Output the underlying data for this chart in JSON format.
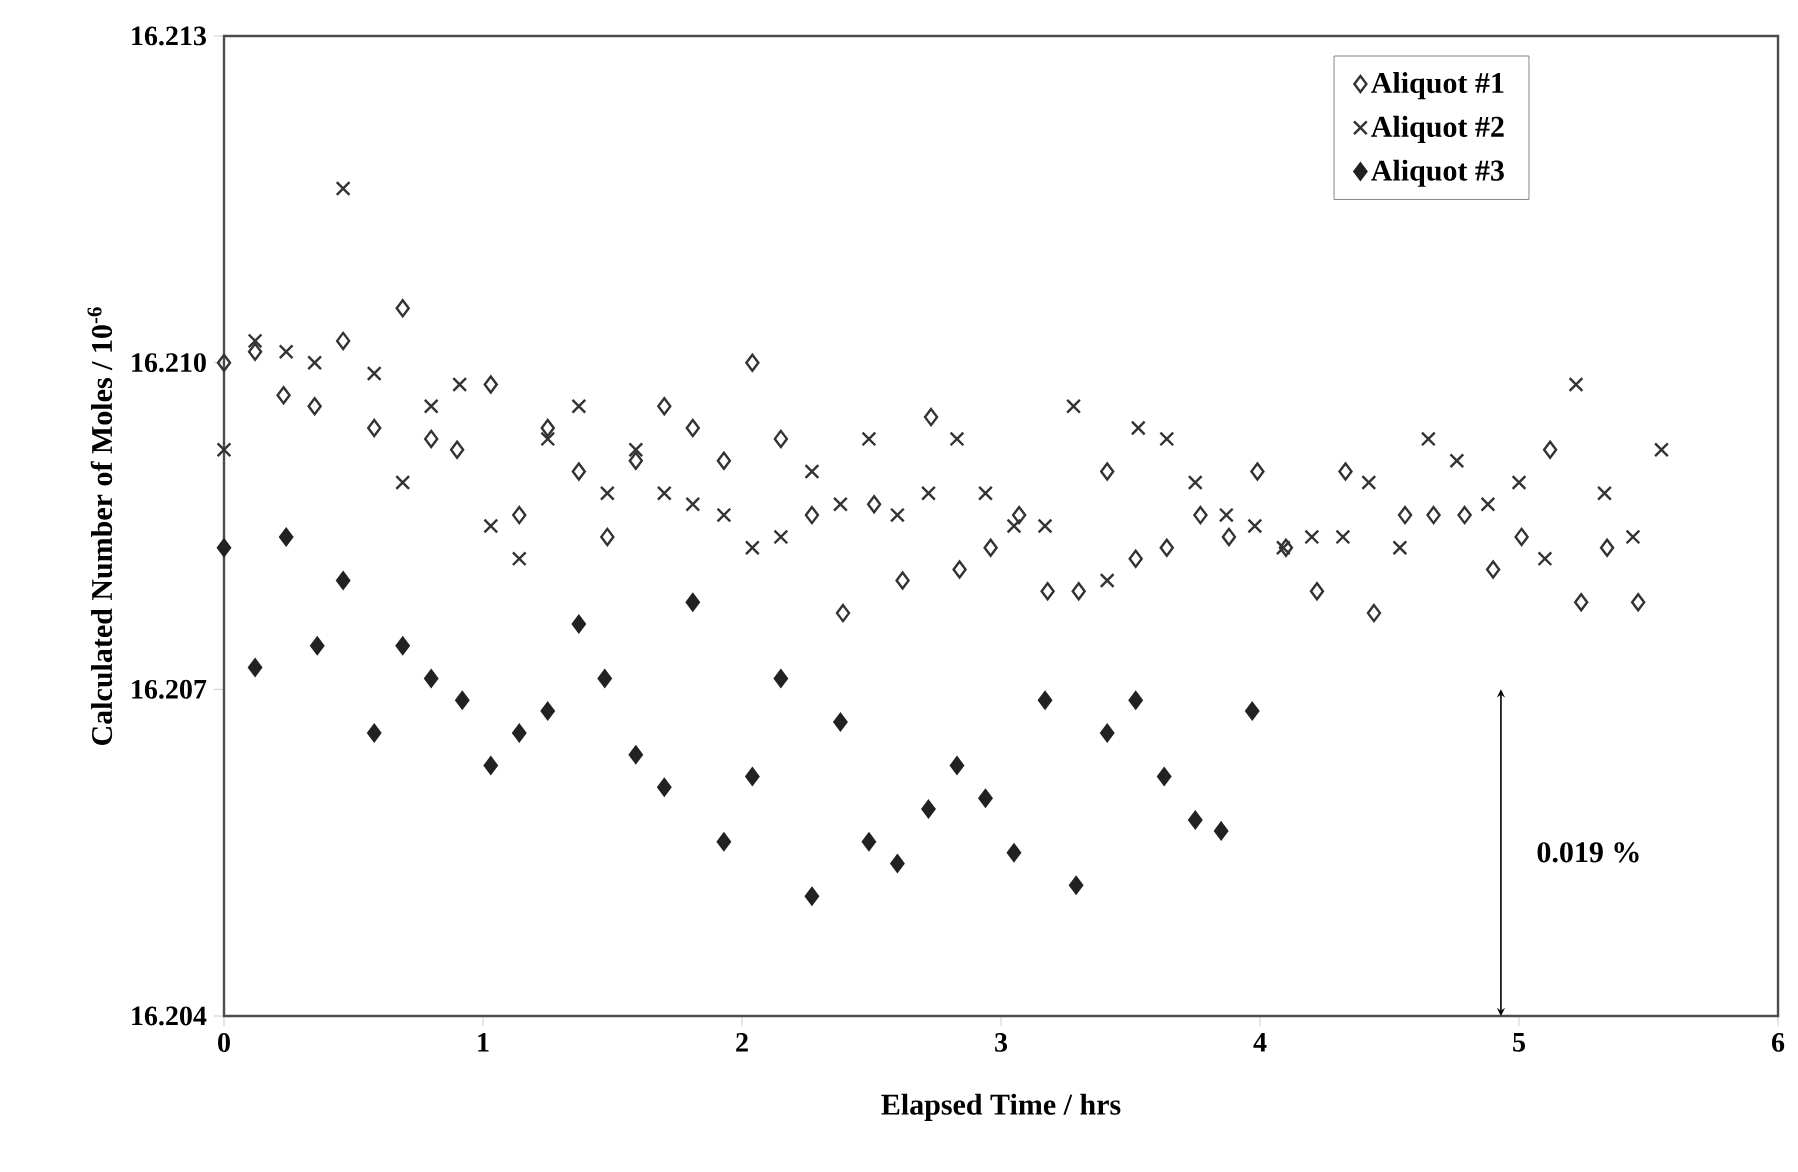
{
  "chart_data": {
    "type": "scatter",
    "xlabel": "Elapsed Time / hrs",
    "ylabel": "Calculated Number of Moles / 10$^{-6}$",
    "xlim": [
      0,
      6
    ],
    "xticks": [
      0,
      1,
      2,
      3,
      4,
      5,
      6
    ],
    "ylim": [
      16.204,
      16.213
    ],
    "yticks": [
      {
        "value": 16.204,
        "label": "16.204"
      },
      {
        "value": 16.207,
        "label": "16.207"
      },
      {
        "value": 16.21,
        "label": "16.210"
      },
      {
        "value": 16.213,
        "label": "16.213"
      }
    ],
    "grid": false,
    "legend": "top right",
    "annotations": [
      "0.019 %"
    ],
    "series": [
      {
        "name": "Aliquot #1",
        "color": "#333333",
        "marker": "diamond",
        "x": [
          0,
          0.12,
          0.23,
          0.35,
          0.46,
          0.58,
          0.69,
          0.8,
          0.9,
          1.03,
          1.14,
          1.25,
          1.37,
          1.48,
          1.59,
          1.7,
          1.81,
          1.93,
          2.04,
          2.15,
          2.27,
          2.39,
          2.51,
          2.62,
          2.73,
          2.84,
          2.96,
          3.07,
          3.18,
          3.3,
          3.41,
          3.52,
          3.64,
          3.77,
          3.88,
          3.99,
          4.1,
          4.22,
          4.33,
          4.44,
          4.56,
          4.67,
          4.79,
          4.9,
          5.01,
          5.12,
          5.24,
          5.34,
          5.46
        ],
        "values": [
          16.21,
          16.2101,
          16.2097,
          16.2096,
          16.2102,
          16.2094,
          16.2105,
          16.2093,
          16.2092,
          16.2098,
          16.2086,
          16.2094,
          16.209,
          16.2084,
          16.2091,
          16.2096,
          16.2094,
          16.2091,
          16.21,
          16.2093,
          16.2086,
          16.2077,
          16.2087,
          16.208,
          16.2095,
          16.2081,
          16.2083,
          16.2086,
          16.2079,
          16.2079,
          16.209,
          16.2082,
          16.2083,
          16.2086,
          16.2084,
          16.209,
          16.2083,
          16.2079,
          16.209,
          16.2077,
          16.2086,
          16.2086,
          16.2086,
          16.2081,
          16.2084,
          16.2092,
          16.2078,
          16.2083,
          16.2078
        ]
      },
      {
        "name": "Aliquot #2",
        "color": "#333333",
        "marker": "cross",
        "x": [
          0,
          0.12,
          0.24,
          0.35,
          0.46,
          0.58,
          0.69,
          0.8,
          0.91,
          1.03,
          1.14,
          1.25,
          1.37,
          1.48,
          1.59,
          1.7,
          1.81,
          1.93,
          2.04,
          2.15,
          2.27,
          2.38,
          2.49,
          2.6,
          2.72,
          2.83,
          2.94,
          3.05,
          3.17,
          3.28,
          3.41,
          3.53,
          3.64,
          3.75,
          3.87,
          3.98,
          4.09,
          4.2,
          4.32,
          4.42,
          4.54,
          4.65,
          4.76,
          4.88,
          5,
          5.1,
          5.22,
          5.33,
          5.44,
          5.55
        ],
        "values": [
          16.2092,
          16.2102,
          16.2101,
          16.21,
          16.2116,
          16.2099,
          16.2089,
          16.2096,
          16.2098,
          16.2085,
          16.2082,
          16.2093,
          16.2096,
          16.2088,
          16.2092,
          16.2088,
          16.2087,
          16.2086,
          16.2083,
          16.2084,
          16.209,
          16.2087,
          16.2093,
          16.2086,
          16.2088,
          16.2093,
          16.2088,
          16.2085,
          16.2085,
          16.2096,
          16.208,
          16.2094,
          16.2093,
          16.2089,
          16.2086,
          16.2085,
          16.2083,
          16.2084,
          16.2084,
          16.2089,
          16.2083,
          16.2093,
          16.2091,
          16.2087,
          16.2089,
          16.2082,
          16.2098,
          16.2088,
          16.2084,
          16.2092
        ]
      },
      {
        "name": "Aliquot #3",
        "color": "#222222",
        "marker": "diamond",
        "x": [
          0,
          0.12,
          0.24,
          0.36,
          0.46,
          0.58,
          0.69,
          0.8,
          0.92,
          1.03,
          1.14,
          1.25,
          1.37,
          1.47,
          1.59,
          1.7,
          1.81,
          1.93,
          2.04,
          2.15,
          2.27,
          2.38,
          2.49,
          2.6,
          2.72,
          2.83,
          2.94,
          3.05,
          3.17,
          3.29,
          3.41,
          3.52,
          3.63,
          3.75,
          3.85,
          3.97
        ],
        "values": [
          16.2083,
          16.2072,
          16.2084,
          16.2074,
          16.208,
          16.2066,
          16.2074,
          16.2071,
          16.2069,
          16.2063,
          16.2066,
          16.2068,
          16.2076,
          16.2071,
          16.2064,
          16.2061,
          16.2078,
          16.2056,
          16.2062,
          16.2071,
          16.2051,
          16.2067,
          16.2056,
          16.2054,
          16.2059,
          16.2063,
          16.206,
          16.2055,
          16.2069,
          16.2052,
          16.2066,
          16.2069,
          16.2062,
          16.2058,
          16.2057,
          16.2068
        ]
      }
    ]
  }
}
